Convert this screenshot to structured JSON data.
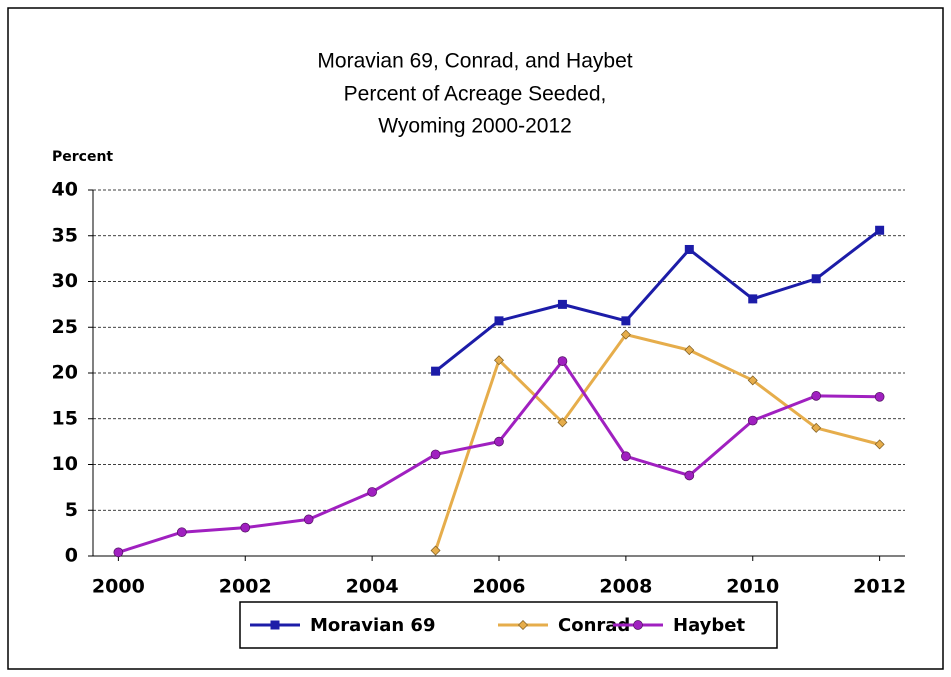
{
  "chart_data": {
    "type": "line",
    "title": [
      "Moravian 69, Conrad, and Haybet",
      "Percent of Acreage Seeded,",
      "Wyoming 2000-2012"
    ],
    "y_label": "Percent",
    "x": [
      2000,
      2001,
      2002,
      2003,
      2004,
      2005,
      2006,
      2007,
      2008,
      2009,
      2010,
      2011,
      2012
    ],
    "series": [
      {
        "name": "Moravian 69",
        "color": "#1c1ca8",
        "marker": "square",
        "values": [
          null,
          null,
          null,
          null,
          null,
          20.2,
          25.7,
          27.5,
          25.7,
          33.5,
          28.1,
          30.3,
          35.6
        ]
      },
      {
        "name": "Conrad",
        "color": "#e6ad4b",
        "marker": "diamond",
        "values": [
          null,
          null,
          null,
          null,
          null,
          0.6,
          21.4,
          14.6,
          24.2,
          22.5,
          19.2,
          14.0,
          12.2
        ]
      },
      {
        "name": "Haybet",
        "color": "#a020c0",
        "marker": "circle",
        "values": [
          0.4,
          2.6,
          3.1,
          4.0,
          7.0,
          11.1,
          12.5,
          21.3,
          10.9,
          8.8,
          14.8,
          17.5,
          17.4
        ]
      }
    ],
    "xlim": [
      1999.6,
      2012.4
    ],
    "xticks": [
      2000,
      2002,
      2004,
      2006,
      2008,
      2010,
      2012
    ],
    "ylim": [
      0,
      40
    ],
    "yticks": [
      0,
      5,
      10,
      15,
      20,
      25,
      30,
      35,
      40
    ],
    "grid": true,
    "legend": "bottom"
  }
}
